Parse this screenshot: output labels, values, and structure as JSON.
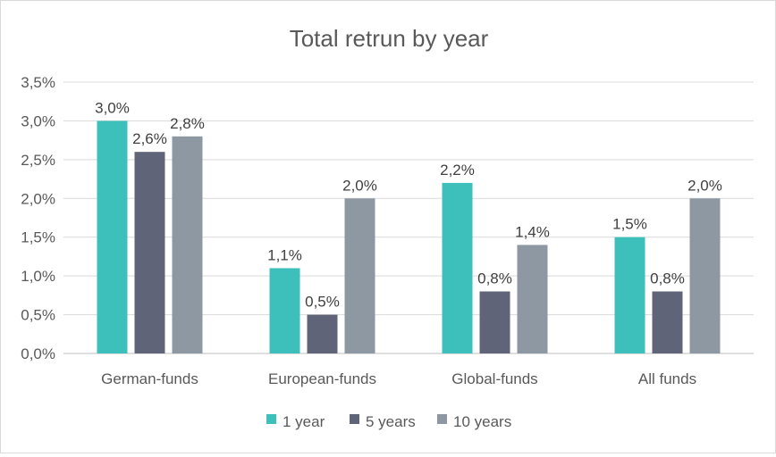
{
  "chart_data": {
    "type": "bar",
    "title": "Total retrun by year",
    "categories": [
      "German-funds",
      "European-funds",
      "Global-funds",
      "All funds"
    ],
    "series": [
      {
        "name": "1 year",
        "values": [
          3.0,
          1.1,
          2.2,
          1.5
        ],
        "color": "#3dbfbc"
      },
      {
        "name": "5 years",
        "values": [
          2.6,
          0.5,
          0.8,
          0.8
        ],
        "color": "#606478"
      },
      {
        "name": "10 years",
        "values": [
          2.8,
          2.0,
          1.4,
          2.0
        ],
        "color": "#8e98a3"
      }
    ],
    "data_labels": [
      [
        "3,0%",
        "1,1%",
        "2,2%",
        "1,5%"
      ],
      [
        "2,6%",
        "0,5%",
        "0,8%",
        "0,8%"
      ],
      [
        "2,8%",
        "2,0%",
        "1,4%",
        "2,0%"
      ]
    ],
    "y_ticks": [
      {
        "value": 0.0,
        "label": "0,0%"
      },
      {
        "value": 0.5,
        "label": "0,5%"
      },
      {
        "value": 1.0,
        "label": "1,0%"
      },
      {
        "value": 1.5,
        "label": "1,5%"
      },
      {
        "value": 2.0,
        "label": "2,0%"
      },
      {
        "value": 2.5,
        "label": "2,5%"
      },
      {
        "value": 3.0,
        "label": "3,0%"
      },
      {
        "value": 3.5,
        "label": "3,5%"
      }
    ],
    "ylim": [
      0,
      3.5
    ],
    "grid": true,
    "legend": "bottom",
    "xlabel": "",
    "ylabel": ""
  }
}
